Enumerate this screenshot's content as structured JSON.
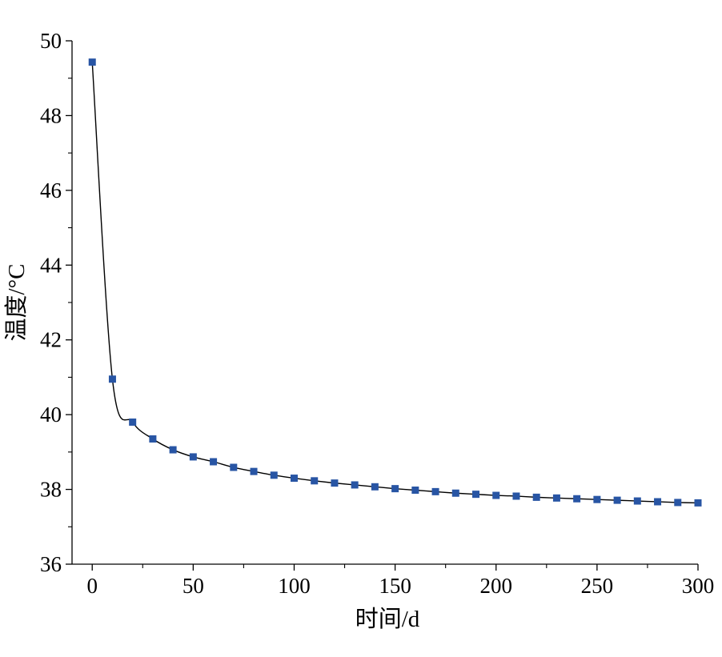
{
  "chart_data": {
    "type": "line",
    "title": "",
    "xlabel": "时间/d",
    "ylabel": "温度/°C",
    "xlim": [
      -10,
      300
    ],
    "ylim": [
      36,
      50
    ],
    "xticks": [
      0,
      50,
      100,
      150,
      200,
      250,
      300
    ],
    "xtick_labels": [
      "0",
      "50",
      "100",
      "150",
      "200",
      "250",
      "300"
    ],
    "yticks": [
      36,
      38,
      40,
      42,
      44,
      46,
      48,
      50
    ],
    "ytick_labels": [
      "36",
      "38",
      "40",
      "42",
      "44",
      "46",
      "48",
      "50"
    ],
    "grid": false,
    "legend": "none",
    "series": [
      {
        "marker": "square",
        "color": "#2855a4",
        "line_color": "#000000",
        "x": [
          0,
          10,
          20,
          30,
          40,
          50,
          60,
          70,
          80,
          90,
          100,
          110,
          120,
          130,
          140,
          150,
          160,
          170,
          180,
          190,
          200,
          210,
          220,
          230,
          240,
          250,
          260,
          270,
          280,
          290,
          300
        ],
        "y": [
          49.43,
          40.95,
          39.8,
          39.35,
          39.06,
          38.87,
          38.74,
          38.59,
          38.48,
          38.38,
          38.3,
          38.23,
          38.17,
          38.12,
          38.07,
          38.02,
          37.98,
          37.94,
          37.9,
          37.87,
          37.84,
          37.82,
          37.79,
          37.77,
          37.75,
          37.73,
          37.71,
          37.69,
          37.67,
          37.65,
          37.64
        ]
      }
    ]
  }
}
